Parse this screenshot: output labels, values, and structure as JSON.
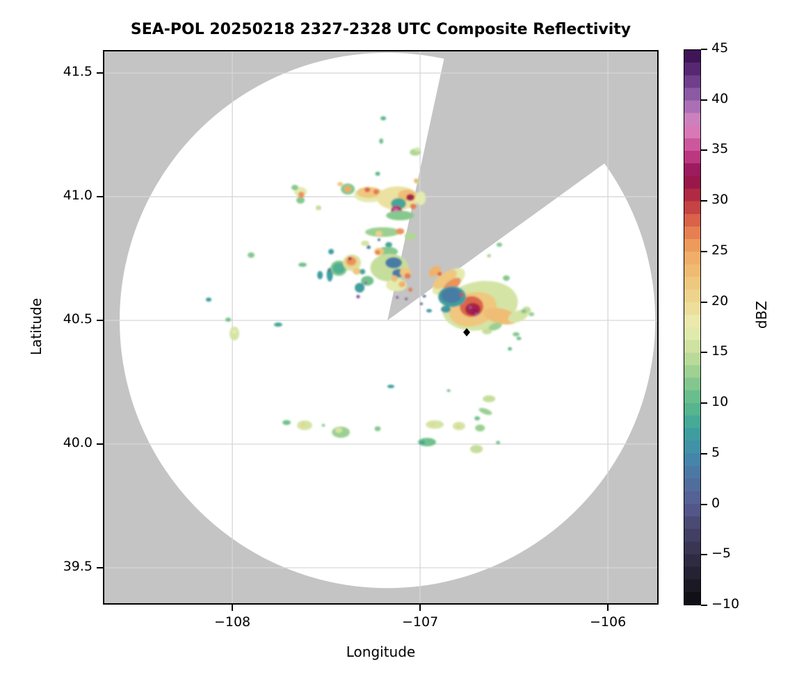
{
  "title": "SEA-POL 20250218 2327-2328 UTC Composite Reflectivity",
  "axes": {
    "xlabel": "Longitude",
    "ylabel": "Latitude"
  },
  "chart_data": {
    "type": "heatmap",
    "subtype": "radar_composite_reflectivity_ppi",
    "title": "SEA-POL 20250218 2327-2328 UTC Composite Reflectivity",
    "xlabel": "Longitude",
    "ylabel": "Latitude",
    "xlim": [
      -108.689,
      -105.73
    ],
    "ylim": [
      39.351,
      41.593
    ],
    "grid": true,
    "x_ticks": [
      {
        "v": -108,
        "label": "−108"
      },
      {
        "v": -107,
        "label": "−107"
      },
      {
        "v": -106,
        "label": "−106"
      }
    ],
    "y_ticks": [
      {
        "v": 41.5,
        "label": "41.5"
      },
      {
        "v": 41.0,
        "label": "41.0"
      },
      {
        "v": 40.5,
        "label": "40.5"
      },
      {
        "v": 40.0,
        "label": "40.0"
      },
      {
        "v": 39.5,
        "label": "39.5"
      }
    ],
    "colorbar": {
      "label": "dBZ",
      "min": -10,
      "max": 45,
      "ticks": [
        {
          "v": 45,
          "label": "45"
        },
        {
          "v": 40,
          "label": "40"
        },
        {
          "v": 35,
          "label": "35"
        },
        {
          "v": 30,
          "label": "30"
        },
        {
          "v": 25,
          "label": "25"
        },
        {
          "v": 20,
          "label": "20"
        },
        {
          "v": 15,
          "label": "15"
        },
        {
          "v": 10,
          "label": "10"
        },
        {
          "v": 5,
          "label": "5"
        },
        {
          "v": 0,
          "label": "0"
        },
        {
          "v": -5,
          "label": "−5"
        },
        {
          "v": -10,
          "label": "−10"
        }
      ],
      "stops": [
        [
          -10,
          "#0c0b10"
        ],
        [
          -7.5,
          "#201d2b"
        ],
        [
          -5,
          "#34304a"
        ],
        [
          -2.5,
          "#47446c"
        ],
        [
          0,
          "#575c91"
        ],
        [
          2.5,
          "#4f72a1"
        ],
        [
          5,
          "#418bab"
        ],
        [
          7.5,
          "#3fa39b"
        ],
        [
          10,
          "#5db989"
        ],
        [
          12.5,
          "#90cc8f"
        ],
        [
          15,
          "#c6de9c"
        ],
        [
          17.5,
          "#eaeeb2"
        ],
        [
          20,
          "#eed994"
        ],
        [
          22.5,
          "#efc278"
        ],
        [
          25,
          "#f0a763"
        ],
        [
          27.5,
          "#e3724c"
        ],
        [
          30,
          "#bb3340"
        ],
        [
          32.5,
          "#8e0d4d"
        ],
        [
          35,
          "#c8468f"
        ],
        [
          37.5,
          "#dd8ac2"
        ],
        [
          40,
          "#9a66b0"
        ],
        [
          42.5,
          "#63307f"
        ],
        [
          45,
          "#330c4a"
        ]
      ]
    },
    "radar": {
      "center_lon": -107.174,
      "center_lat": 40.5,
      "range_radius_deg_lon": 1.426,
      "missing_sector_azimuth_deg": [
        12.2,
        54.1
      ]
    },
    "colors": {
      "outside_range_gray": "#c4c4c4",
      "inside_range_white": "#ffffff",
      "gridline": "#d6d6d6",
      "frame": "#000000"
    },
    "marker": {
      "lon": -106.752,
      "lat": 40.452,
      "symbol": "diamond",
      "color": "#000000"
    },
    "cells_format": [
      "lon",
      "lat",
      "width_deg",
      "height_deg",
      "dbz",
      "rotation_deg"
    ],
    "cells": [
      [
        -107.637,
        41.02,
        0.067,
        0.039,
        17,
        0
      ],
      [
        -107.667,
        41.037,
        0.037,
        0.022,
        12,
        0
      ],
      [
        -107.637,
        40.986,
        0.044,
        0.028,
        12,
        0
      ],
      [
        -107.633,
        41.008,
        0.033,
        0.025,
        26,
        0
      ],
      [
        -107.541,
        40.955,
        0.03,
        0.02,
        15,
        0
      ],
      [
        -107.426,
        41.051,
        0.03,
        0.017,
        22,
        0
      ],
      [
        -107.385,
        41.031,
        0.074,
        0.045,
        12,
        0
      ],
      [
        -107.385,
        41.031,
        0.037,
        0.025,
        25,
        0
      ],
      [
        -107.27,
        41.008,
        0.163,
        0.062,
        17,
        0
      ],
      [
        -107.274,
        41.017,
        0.126,
        0.045,
        22,
        0
      ],
      [
        -107.281,
        41.028,
        0.03,
        0.02,
        28,
        0
      ],
      [
        -107.233,
        41.02,
        0.033,
        0.022,
        27,
        0
      ],
      [
        -107.119,
        40.994,
        0.222,
        0.096,
        19,
        0
      ],
      [
        -107.07,
        41.006,
        0.096,
        0.045,
        23,
        0
      ],
      [
        -107.052,
        40.997,
        0.044,
        0.028,
        31,
        0
      ],
      [
        -107.115,
        40.972,
        0.081,
        0.045,
        8,
        0
      ],
      [
        -107.126,
        40.944,
        0.059,
        0.039,
        34,
        0
      ],
      [
        -107.13,
        40.947,
        0.026,
        0.017,
        36,
        0
      ],
      [
        -107.037,
        40.961,
        0.033,
        0.022,
        27,
        0
      ],
      [
        -107.107,
        40.924,
        0.148,
        0.039,
        12,
        0
      ],
      [
        -106.996,
        40.994,
        0.052,
        0.056,
        17,
        0
      ],
      [
        -107.226,
        41.093,
        0.026,
        0.017,
        10,
        0
      ],
      [
        -107.015,
        41.062,
        0.03,
        0.02,
        15,
        0
      ],
      [
        -107.022,
        41.065,
        0.022,
        0.017,
        24,
        0
      ],
      [
        -107.207,
        41.225,
        0.022,
        0.022,
        11,
        0
      ],
      [
        -107.026,
        41.18,
        0.059,
        0.028,
        14,
        0
      ],
      [
        -107.015,
        41.191,
        0.03,
        0.017,
        16,
        0
      ],
      [
        -107.196,
        41.317,
        0.03,
        0.017,
        10,
        0
      ],
      [
        -107.2,
        40.857,
        0.185,
        0.039,
        13,
        0
      ],
      [
        -107.107,
        40.86,
        0.044,
        0.025,
        26,
        0
      ],
      [
        -107.219,
        40.851,
        0.037,
        0.022,
        21,
        0
      ],
      [
        -107.167,
        40.806,
        0.037,
        0.022,
        8,
        0
      ],
      [
        -107.052,
        40.84,
        0.059,
        0.034,
        14,
        0
      ],
      [
        -107.626,
        40.725,
        0.044,
        0.017,
        11,
        0
      ],
      [
        -107.9,
        40.764,
        0.037,
        0.022,
        12,
        0
      ],
      [
        -107.474,
        40.778,
        0.03,
        0.022,
        7,
        0
      ],
      [
        -107.533,
        40.683,
        0.03,
        0.034,
        7,
        0
      ],
      [
        -107.481,
        40.685,
        0.033,
        0.056,
        7,
        0
      ],
      [
        -107.481,
        40.702,
        0.015,
        0.011,
        0,
        0
      ],
      [
        -107.433,
        40.711,
        0.089,
        0.062,
        12,
        0
      ],
      [
        -107.433,
        40.711,
        0.067,
        0.045,
        9,
        0
      ],
      [
        -107.363,
        40.733,
        0.096,
        0.067,
        16,
        0
      ],
      [
        -107.367,
        40.736,
        0.074,
        0.051,
        21,
        0
      ],
      [
        -107.367,
        40.739,
        0.052,
        0.034,
        26,
        0
      ],
      [
        -107.374,
        40.75,
        0.019,
        0.014,
        31,
        0
      ],
      [
        -107.337,
        40.699,
        0.044,
        0.028,
        22,
        0
      ],
      [
        -107.307,
        40.697,
        0.03,
        0.022,
        8,
        0
      ],
      [
        -107.281,
        40.66,
        0.067,
        0.039,
        11,
        0
      ],
      [
        -107.289,
        40.652,
        0.015,
        0.011,
        40.5,
        0
      ],
      [
        -107.322,
        40.632,
        0.052,
        0.039,
        7,
        0
      ],
      [
        -107.33,
        40.596,
        0.019,
        0.014,
        41,
        0
      ],
      [
        -107.174,
        40.778,
        0.111,
        0.039,
        12,
        0
      ],
      [
        -107.219,
        40.778,
        0.052,
        0.031,
        22,
        0
      ],
      [
        -107.226,
        40.775,
        0.026,
        0.017,
        27,
        0
      ],
      [
        -107.274,
        40.795,
        0.022,
        0.014,
        6,
        0
      ],
      [
        -107.219,
        40.826,
        0.015,
        0.011,
        2,
        0
      ],
      [
        -107.274,
        40.798,
        0.015,
        0.011,
        2,
        0
      ],
      [
        -107.293,
        40.812,
        0.044,
        0.022,
        16,
        0
      ],
      [
        -107.163,
        40.713,
        0.204,
        0.112,
        15,
        0
      ],
      [
        -107.141,
        40.733,
        0.089,
        0.045,
        3.5,
        0
      ],
      [
        -107.115,
        40.691,
        0.067,
        0.034,
        3.5,
        0
      ],
      [
        -107.078,
        40.694,
        0.059,
        0.039,
        22,
        0
      ],
      [
        -107.067,
        40.68,
        0.033,
        0.022,
        27,
        0
      ],
      [
        -107.126,
        40.643,
        0.111,
        0.051,
        17,
        0
      ],
      [
        -107.137,
        40.669,
        0.037,
        0.025,
        23,
        0
      ],
      [
        -107.096,
        40.646,
        0.037,
        0.025,
        24,
        0
      ],
      [
        -107.052,
        40.624,
        0.022,
        0.017,
        27,
        0
      ],
      [
        -107.122,
        40.593,
        0.015,
        0.011,
        40.5,
        0
      ],
      [
        -107.074,
        40.587,
        0.015,
        0.011,
        40.5,
        0
      ],
      [
        -108.022,
        40.503,
        0.03,
        0.017,
        11,
        0
      ],
      [
        -107.989,
        40.447,
        0.052,
        0.056,
        16,
        0
      ],
      [
        -107.989,
        40.455,
        0.022,
        0.017,
        18,
        0
      ],
      [
        -107.756,
        40.483,
        0.044,
        0.017,
        8,
        0
      ],
      [
        -108.126,
        40.584,
        0.03,
        0.017,
        7,
        0
      ],
      [
        -106.681,
        40.559,
        0.407,
        0.197,
        16,
        -10
      ],
      [
        -106.848,
        40.657,
        0.204,
        0.073,
        17,
        -36
      ],
      [
        -106.867,
        40.666,
        0.148,
        0.051,
        22,
        -36
      ],
      [
        -106.922,
        40.699,
        0.074,
        0.034,
        24,
        -36
      ],
      [
        -106.896,
        40.688,
        0.022,
        0.017,
        28,
        0
      ],
      [
        -106.719,
        40.545,
        0.259,
        0.135,
        22,
        -15
      ],
      [
        -106.57,
        40.517,
        0.185,
        0.062,
        23,
        12
      ],
      [
        -106.83,
        40.643,
        0.111,
        0.039,
        26,
        -36
      ],
      [
        -106.726,
        40.556,
        0.126,
        0.084,
        28,
        0
      ],
      [
        -106.719,
        40.545,
        0.081,
        0.051,
        31,
        0
      ],
      [
        -106.707,
        40.537,
        0.037,
        0.022,
        33,
        0
      ],
      [
        -106.83,
        40.596,
        0.148,
        0.084,
        7,
        0
      ],
      [
        -106.833,
        40.601,
        0.111,
        0.062,
        3.5,
        0
      ],
      [
        -106.863,
        40.545,
        0.052,
        0.028,
        6,
        0
      ],
      [
        -106.778,
        40.604,
        0.019,
        0.014,
        29,
        0
      ],
      [
        -106.733,
        40.553,
        0.015,
        0.011,
        40.5,
        0
      ],
      [
        -106.7,
        40.525,
        0.015,
        0.011,
        40.5,
        0
      ],
      [
        -106.978,
        40.598,
        0.019,
        0.011,
        1,
        0
      ],
      [
        -106.993,
        40.567,
        0.015,
        0.011,
        1,
        0
      ],
      [
        -106.952,
        40.539,
        0.03,
        0.014,
        6,
        0
      ],
      [
        -106.478,
        40.517,
        0.111,
        0.045,
        16,
        -20
      ],
      [
        -106.433,
        40.542,
        0.044,
        0.028,
        15,
        0
      ],
      [
        -106.6,
        40.475,
        0.074,
        0.028,
        13,
        -20
      ],
      [
        -106.541,
        40.671,
        0.037,
        0.022,
        12,
        0
      ],
      [
        -106.448,
        40.537,
        0.03,
        0.017,
        12,
        0
      ],
      [
        -106.407,
        40.525,
        0.03,
        0.017,
        13,
        0
      ],
      [
        -106.644,
        40.455,
        0.052,
        0.022,
        15,
        0
      ],
      [
        -106.489,
        40.444,
        0.037,
        0.017,
        12,
        0
      ],
      [
        -106.474,
        40.427,
        0.026,
        0.014,
        11,
        0
      ],
      [
        -106.522,
        40.385,
        0.022,
        0.014,
        10,
        0
      ],
      [
        -106.578,
        40.806,
        0.03,
        0.017,
        12,
        0
      ],
      [
        -106.633,
        40.761,
        0.022,
        0.014,
        14,
        0
      ],
      [
        -107.711,
        40.087,
        0.044,
        0.02,
        11,
        0
      ],
      [
        -107.615,
        40.076,
        0.081,
        0.039,
        16,
        0
      ],
      [
        -107.622,
        40.079,
        0.022,
        0.014,
        21,
        0
      ],
      [
        -107.515,
        40.076,
        0.019,
        0.011,
        12,
        0
      ],
      [
        -107.422,
        40.048,
        0.096,
        0.045,
        13,
        0
      ],
      [
        -107.433,
        40.056,
        0.037,
        0.022,
        16,
        0
      ],
      [
        -107.226,
        40.062,
        0.033,
        0.02,
        12,
        0
      ],
      [
        -107.156,
        40.233,
        0.037,
        0.014,
        7,
        0
      ],
      [
        -106.848,
        40.216,
        0.019,
        0.011,
        11,
        0
      ],
      [
        -106.633,
        40.183,
        0.067,
        0.028,
        15,
        0
      ],
      [
        -106.652,
        40.132,
        0.074,
        0.022,
        13,
        20
      ],
      [
        -106.696,
        40.104,
        0.03,
        0.017,
        11,
        0
      ],
      [
        -106.922,
        40.079,
        0.096,
        0.034,
        16,
        0
      ],
      [
        -106.937,
        40.079,
        0.019,
        0.011,
        21,
        0
      ],
      [
        -106.793,
        40.073,
        0.067,
        0.034,
        16,
        0
      ],
      [
        -106.796,
        40.07,
        0.019,
        0.011,
        22,
        0
      ],
      [
        -106.681,
        40.065,
        0.052,
        0.028,
        13,
        0
      ],
      [
        -106.963,
        40.008,
        0.096,
        0.034,
        11,
        0
      ],
      [
        -106.989,
        40.006,
        0.03,
        0.017,
        8,
        0
      ],
      [
        -106.7,
        39.98,
        0.067,
        0.034,
        15,
        0
      ],
      [
        -106.585,
        40.006,
        0.022,
        0.014,
        11,
        0
      ]
    ]
  }
}
